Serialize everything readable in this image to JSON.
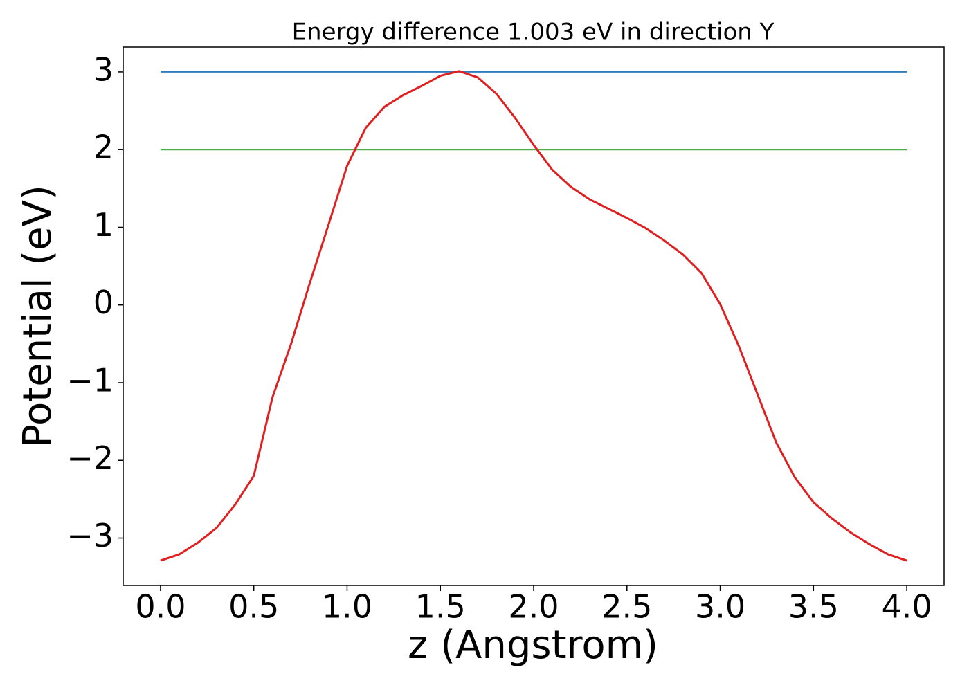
{
  "chart_data": {
    "type": "line",
    "title": "Energy difference 1.003 eV in direction Y",
    "xlabel": "z (Angstrom)",
    "ylabel": "Potential (eV)",
    "xlim": [
      -0.2,
      4.2
    ],
    "ylim": [
      -3.61,
      3.32
    ],
    "xticks": [
      {
        "value": 0,
        "label": "0.0"
      },
      0.5,
      {
        "value": 1,
        "label": "1.0"
      },
      1.5,
      {
        "value": 2,
        "label": "2.0"
      },
      2.5,
      {
        "value": 3,
        "label": "3.0"
      },
      3.5,
      {
        "value": 4,
        "label": "4.0"
      }
    ],
    "yticks": [
      {
        "value": -3,
        "label": "−3"
      },
      {
        "value": -2,
        "label": "−2"
      },
      {
        "value": -1,
        "label": "−1"
      },
      0,
      1,
      2,
      3
    ],
    "series": [
      {
        "color": "#e02020",
        "x": [
          0.0,
          0.1,
          0.2,
          0.3,
          0.4,
          0.5,
          0.6,
          0.7,
          0.8,
          0.9,
          1.0,
          1.1,
          1.2,
          1.3,
          1.4,
          1.5,
          1.6,
          1.7,
          1.8,
          1.9,
          2.0,
          2.1,
          2.2,
          2.3,
          2.4,
          2.5,
          2.6,
          2.7,
          2.8,
          2.9,
          3.0,
          3.1,
          3.2,
          3.3,
          3.4,
          3.5,
          3.6,
          3.7,
          3.8,
          3.9,
          4.0
        ],
        "values": [
          -3.29,
          -3.21,
          -3.06,
          -2.87,
          -2.57,
          -2.2,
          -1.19,
          -0.5,
          0.28,
          1.03,
          1.79,
          2.28,
          2.55,
          2.7,
          2.82,
          2.95,
          3.01,
          2.93,
          2.72,
          2.41,
          2.06,
          1.74,
          1.52,
          1.36,
          1.24,
          1.12,
          0.99,
          0.83,
          0.65,
          0.41,
          0.01,
          -0.53,
          -1.15,
          -1.77,
          -2.22,
          -2.54,
          -2.75,
          -2.93,
          -3.08,
          -3.21,
          -3.29
        ]
      },
      {
        "color": "#2f7bbf",
        "x": [
          0,
          4
        ],
        "values": [
          3.0,
          3.0
        ]
      },
      {
        "color": "#4daf4a",
        "x": [
          0,
          4
        ],
        "values": [
          2.0,
          2.0
        ]
      }
    ]
  }
}
